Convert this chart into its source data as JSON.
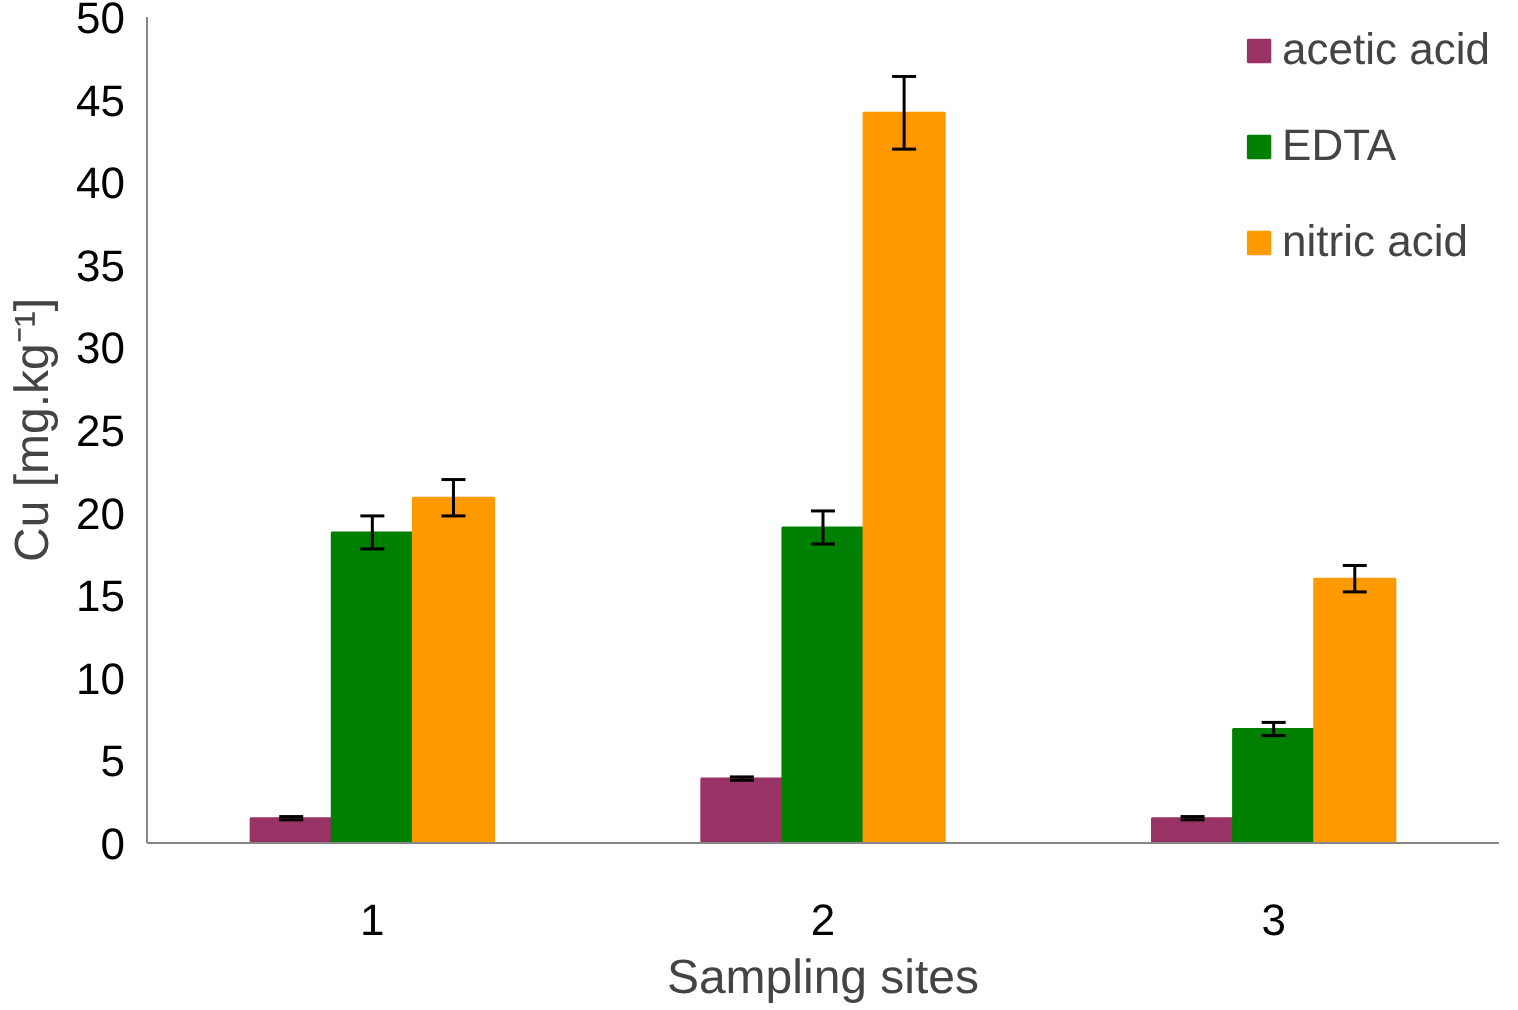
{
  "chart_data": {
    "type": "bar",
    "xlabel": "Sampling sites",
    "ylabel": "Cu [mg.kg⁻¹]",
    "categories": [
      "1",
      "2",
      "3"
    ],
    "series": [
      {
        "name": "acetic acid",
        "color": "#993366",
        "values": [
          1.5,
          3.9,
          1.5
        ],
        "errors": [
          0.1,
          0.1,
          0.1
        ]
      },
      {
        "name": "EDTA",
        "color": "#008000",
        "values": [
          18.8,
          19.1,
          6.9
        ],
        "errors": [
          1.0,
          1.0,
          0.4
        ]
      },
      {
        "name": "nitric acid",
        "color": "#ff9900",
        "values": [
          20.9,
          44.2,
          16.0
        ],
        "errors": [
          1.1,
          2.2,
          0.8
        ]
      }
    ],
    "ylim": [
      0,
      50
    ],
    "yticks": [
      0,
      5,
      10,
      15,
      20,
      25,
      30,
      35,
      40,
      45,
      50
    ],
    "grid": false,
    "legend": "top right"
  }
}
